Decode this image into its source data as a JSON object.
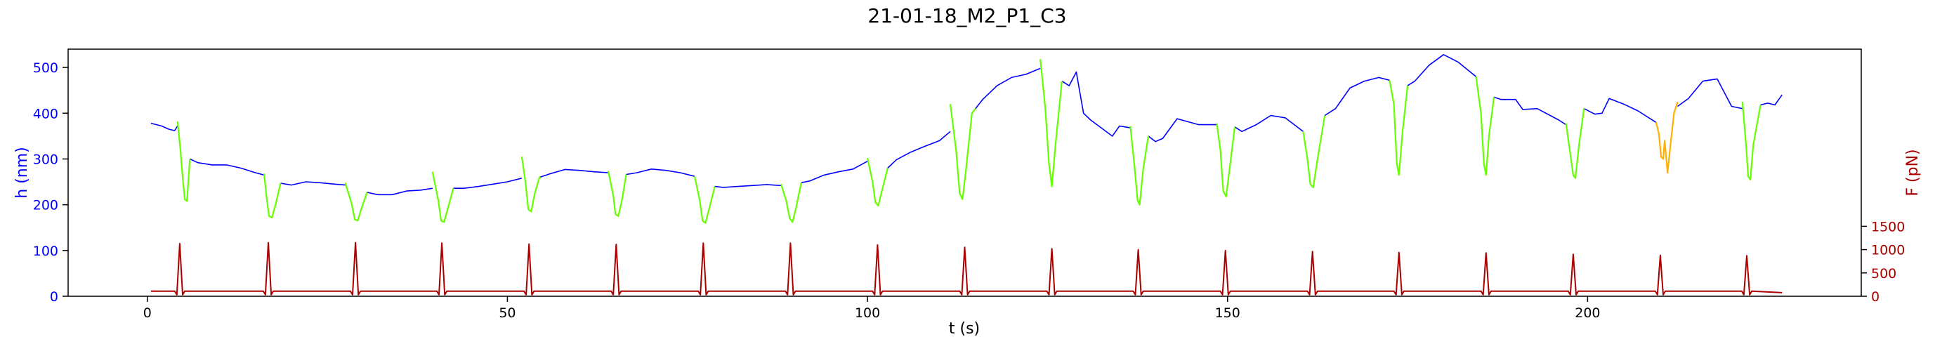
{
  "chart_data": {
    "type": "line",
    "title": "21-01-18_M2_P1_C3",
    "xlabel": "t (s)",
    "ylabel_left": "h (nm)",
    "ylabel_right": "F (pN)",
    "xlim": [
      -11,
      238
    ],
    "ylim_left": [
      0,
      540
    ],
    "ylim_right": [
      0,
      5300
    ],
    "x_ticks": [
      0,
      50,
      100,
      150,
      200
    ],
    "y_left_ticks": [
      0,
      100,
      200,
      300,
      400,
      500
    ],
    "y_right_ticks": [
      0,
      500,
      1000,
      1500
    ],
    "grid": false,
    "legend": "none",
    "colors": {
      "height": "#0000ff",
      "force_segment": "#66ff00",
      "force_segment_alt": "#ffb000",
      "force": "#aa0000",
      "left_axis": "#0000ff",
      "right_axis": "#aa0000"
    },
    "force_baseline": 110,
    "force_peak_times": [
      4.5,
      16.8,
      28.9,
      40.9,
      53.0,
      65.1,
      77.2,
      89.3,
      101.4,
      113.5,
      125.6,
      137.6,
      149.7,
      161.8,
      173.8,
      185.9,
      198.0,
      210.1,
      222.1
    ],
    "force_peaks": [
      1130,
      1150,
      1150,
      1140,
      1120,
      1110,
      1140,
      1140,
      1100,
      1050,
      1020,
      1000,
      980,
      960,
      940,
      930,
      900,
      880,
      870
    ],
    "height_segments": [
      {
        "points": [
          [
            0.5,
            378
          ],
          [
            2,
            372
          ],
          [
            3,
            365
          ],
          [
            3.8,
            362
          ],
          [
            4.2,
            372
          ]
        ]
      },
      {
        "points": [
          [
            5.9,
            300
          ],
          [
            7,
            292
          ],
          [
            9,
            287
          ],
          [
            11,
            287
          ],
          [
            13,
            280
          ],
          [
            15,
            270
          ],
          [
            16.2,
            265
          ]
        ]
      },
      {
        "points": [
          [
            18.5,
            247
          ],
          [
            20,
            243
          ],
          [
            22,
            250
          ],
          [
            24,
            248
          ],
          [
            26,
            245
          ],
          [
            27.5,
            243
          ]
        ]
      },
      {
        "points": [
          [
            30.5,
            227
          ],
          [
            32,
            222
          ],
          [
            34,
            222
          ],
          [
            36,
            230
          ],
          [
            38,
            232
          ],
          [
            39.6,
            236
          ]
        ]
      },
      {
        "points": [
          [
            42.5,
            236
          ],
          [
            44,
            236
          ],
          [
            46,
            240
          ],
          [
            48,
            245
          ],
          [
            50,
            250
          ],
          [
            52,
            258
          ]
        ]
      },
      {
        "points": [
          [
            54.5,
            260
          ],
          [
            56,
            268
          ],
          [
            58,
            277
          ],
          [
            60,
            275
          ],
          [
            62,
            272
          ],
          [
            64,
            270
          ]
        ]
      },
      {
        "points": [
          [
            66.5,
            266
          ],
          [
            68,
            270
          ],
          [
            70,
            278
          ],
          [
            72,
            275
          ],
          [
            74,
            270
          ],
          [
            76,
            262
          ]
        ]
      },
      {
        "points": [
          [
            78.8,
            240
          ],
          [
            80,
            238
          ],
          [
            82,
            240
          ],
          [
            84,
            242
          ],
          [
            86,
            244
          ],
          [
            88,
            242
          ]
        ]
      },
      {
        "points": [
          [
            90.8,
            248
          ],
          [
            92,
            252
          ],
          [
            94,
            265
          ],
          [
            96,
            272
          ],
          [
            98,
            278
          ],
          [
            100,
            295
          ]
        ]
      },
      {
        "points": [
          [
            102.8,
            280
          ],
          [
            104,
            298
          ],
          [
            106,
            315
          ],
          [
            108,
            328
          ],
          [
            110,
            340
          ],
          [
            111.5,
            360
          ]
        ]
      },
      {
        "points": [
          [
            115,
            410
          ],
          [
            116,
            430
          ],
          [
            118,
            460
          ],
          [
            120,
            478
          ],
          [
            122,
            485
          ],
          [
            124,
            498
          ]
        ]
      },
      {
        "points": [
          [
            127,
            470
          ],
          [
            128,
            460
          ],
          [
            129,
            490
          ],
          [
            130,
            400
          ],
          [
            131,
            385
          ],
          [
            134,
            350
          ],
          [
            135,
            372
          ],
          [
            136.5,
            368
          ]
        ]
      },
      {
        "points": [
          [
            139,
            350
          ],
          [
            140,
            338
          ],
          [
            141,
            345
          ],
          [
            143,
            388
          ],
          [
            146,
            375
          ],
          [
            148.5,
            375
          ]
        ]
      },
      {
        "points": [
          [
            151,
            370
          ],
          [
            152,
            360
          ],
          [
            154,
            375
          ],
          [
            156,
            395
          ],
          [
            158,
            390
          ],
          [
            160.5,
            360
          ]
        ]
      },
      {
        "points": [
          [
            163.5,
            395
          ],
          [
            165,
            410
          ],
          [
            167,
            455
          ],
          [
            169,
            470
          ],
          [
            171,
            478
          ],
          [
            172.5,
            472
          ]
        ]
      },
      {
        "points": [
          [
            175,
            460
          ],
          [
            176,
            470
          ],
          [
            178,
            505
          ],
          [
            180,
            528
          ],
          [
            182,
            512
          ],
          [
            184.5,
            480
          ]
        ]
      },
      {
        "points": [
          [
            187,
            435
          ],
          [
            188,
            430
          ],
          [
            190,
            430
          ],
          [
            191,
            408
          ],
          [
            193,
            410
          ],
          [
            196,
            385
          ],
          [
            197,
            375
          ]
        ]
      },
      {
        "points": [
          [
            199.5,
            410
          ],
          [
            201,
            398
          ],
          [
            202,
            400
          ],
          [
            203,
            432
          ],
          [
            205,
            420
          ],
          [
            207,
            405
          ],
          [
            209.5,
            380
          ]
        ]
      },
      {
        "points": [
          [
            212.5,
            415
          ],
          [
            214,
            432
          ],
          [
            216,
            470
          ],
          [
            218,
            475
          ],
          [
            220,
            415
          ],
          [
            221.5,
            410
          ]
        ]
      },
      {
        "points": [
          [
            224,
            418
          ],
          [
            225,
            422
          ],
          [
            226,
            418
          ],
          [
            227,
            440
          ]
        ]
      }
    ],
    "force_segments": [
      {
        "color": "force_segment",
        "points": [
          [
            4.2,
            382
          ],
          [
            4.6,
            320
          ],
          [
            4.9,
            260
          ],
          [
            5.2,
            212
          ],
          [
            5.5,
            208
          ],
          [
            5.9,
            300
          ]
        ]
      },
      {
        "color": "force_segment",
        "points": [
          [
            16.2,
            268
          ],
          [
            16.6,
            210
          ],
          [
            16.9,
            175
          ],
          [
            17.3,
            172
          ],
          [
            17.8,
            200
          ],
          [
            18.5,
            247
          ]
        ]
      },
      {
        "points": [
          [
            27.5,
            248
          ],
          [
            28.4,
            200
          ],
          [
            28.8,
            168
          ],
          [
            29.2,
            165
          ],
          [
            29.7,
            190
          ],
          [
            30.5,
            227
          ]
        ],
        "color": "force_segment"
      },
      {
        "color": "force_segment",
        "points": [
          [
            39.6,
            272
          ],
          [
            40.4,
            210
          ],
          [
            40.8,
            165
          ],
          [
            41.2,
            162
          ],
          [
            41.7,
            190
          ],
          [
            42.5,
            236
          ]
        ]
      },
      {
        "color": "force_segment",
        "points": [
          [
            52,
            305
          ],
          [
            52.5,
            250
          ],
          [
            52.9,
            190
          ],
          [
            53.3,
            185
          ],
          [
            53.8,
            225
          ],
          [
            54.5,
            262
          ]
        ]
      },
      {
        "color": "force_segment",
        "points": [
          [
            64,
            274
          ],
          [
            64.7,
            220
          ],
          [
            65,
            180
          ],
          [
            65.4,
            175
          ],
          [
            65.9,
            210
          ],
          [
            66.5,
            266
          ]
        ]
      },
      {
        "color": "force_segment",
        "points": [
          [
            76,
            262
          ],
          [
            76.7,
            210
          ],
          [
            77.1,
            165
          ],
          [
            77.5,
            160
          ],
          [
            78,
            190
          ],
          [
            78.8,
            240
          ]
        ]
      },
      {
        "color": "force_segment",
        "points": [
          [
            88,
            245
          ],
          [
            88.7,
            210
          ],
          [
            89.2,
            170
          ],
          [
            89.6,
            162
          ],
          [
            90.1,
            195
          ],
          [
            90.8,
            248
          ]
        ]
      },
      {
        "color": "force_segment",
        "points": [
          [
            100,
            302
          ],
          [
            100.7,
            250
          ],
          [
            101.1,
            205
          ],
          [
            101.5,
            198
          ],
          [
            102,
            230
          ],
          [
            102.8,
            280
          ]
        ]
      },
      {
        "color": "force_segment",
        "points": [
          [
            111.5,
            420
          ],
          [
            112.3,
            320
          ],
          [
            112.8,
            225
          ],
          [
            113.2,
            212
          ],
          [
            113.7,
            280
          ],
          [
            114.5,
            400
          ],
          [
            115,
            410
          ]
        ]
      },
      {
        "color": "force_segment",
        "points": [
          [
            124,
            518
          ],
          [
            124.7,
            410
          ],
          [
            125.2,
            290
          ],
          [
            125.6,
            240
          ],
          [
            126.1,
            330
          ],
          [
            127,
            470
          ]
        ]
      },
      {
        "color": "force_segment",
        "points": [
          [
            136.5,
            372
          ],
          [
            137.1,
            280
          ],
          [
            137.5,
            210
          ],
          [
            137.8,
            200
          ],
          [
            138.3,
            280
          ],
          [
            139,
            350
          ]
        ]
      },
      {
        "color": "force_segment",
        "points": [
          [
            148.5,
            378
          ],
          [
            149,
            320
          ],
          [
            149.4,
            230
          ],
          [
            149.8,
            218
          ],
          [
            150.3,
            280
          ],
          [
            151,
            370
          ]
        ]
      },
      {
        "color": "force_segment",
        "points": [
          [
            160.5,
            360
          ],
          [
            161.1,
            300
          ],
          [
            161.5,
            245
          ],
          [
            161.9,
            238
          ],
          [
            162.5,
            300
          ],
          [
            163.5,
            395
          ]
        ]
      },
      {
        "color": "force_segment",
        "points": [
          [
            172.5,
            472
          ],
          [
            173.1,
            420
          ],
          [
            173.5,
            290
          ],
          [
            173.8,
            265
          ],
          [
            174.3,
            360
          ],
          [
            175,
            460
          ]
        ]
      },
      {
        "color": "force_segment",
        "points": [
          [
            184.5,
            480
          ],
          [
            185.2,
            400
          ],
          [
            185.6,
            290
          ],
          [
            185.9,
            265
          ],
          [
            186.3,
            350
          ],
          [
            187,
            435
          ]
        ]
      },
      {
        "color": "force_segment",
        "points": [
          [
            197,
            378
          ],
          [
            197.6,
            310
          ],
          [
            198,
            265
          ],
          [
            198.3,
            258
          ],
          [
            198.8,
            330
          ],
          [
            199.5,
            410
          ]
        ]
      },
      {
        "color": "force_segment_alt",
        "points": [
          [
            209.5,
            380
          ],
          [
            209.9,
            355
          ],
          [
            210.2,
            305
          ],
          [
            210.5,
            300
          ],
          [
            210.7,
            340
          ],
          [
            211.1,
            270
          ],
          [
            211.5,
            330
          ],
          [
            212,
            400
          ],
          [
            212.5,
            425
          ]
        ]
      },
      {
        "color": "force_segment",
        "points": [
          [
            221.5,
            425
          ],
          [
            222,
            330
          ],
          [
            222.3,
            262
          ],
          [
            222.6,
            255
          ],
          [
            223,
            330
          ],
          [
            224,
            418
          ]
        ]
      }
    ]
  }
}
